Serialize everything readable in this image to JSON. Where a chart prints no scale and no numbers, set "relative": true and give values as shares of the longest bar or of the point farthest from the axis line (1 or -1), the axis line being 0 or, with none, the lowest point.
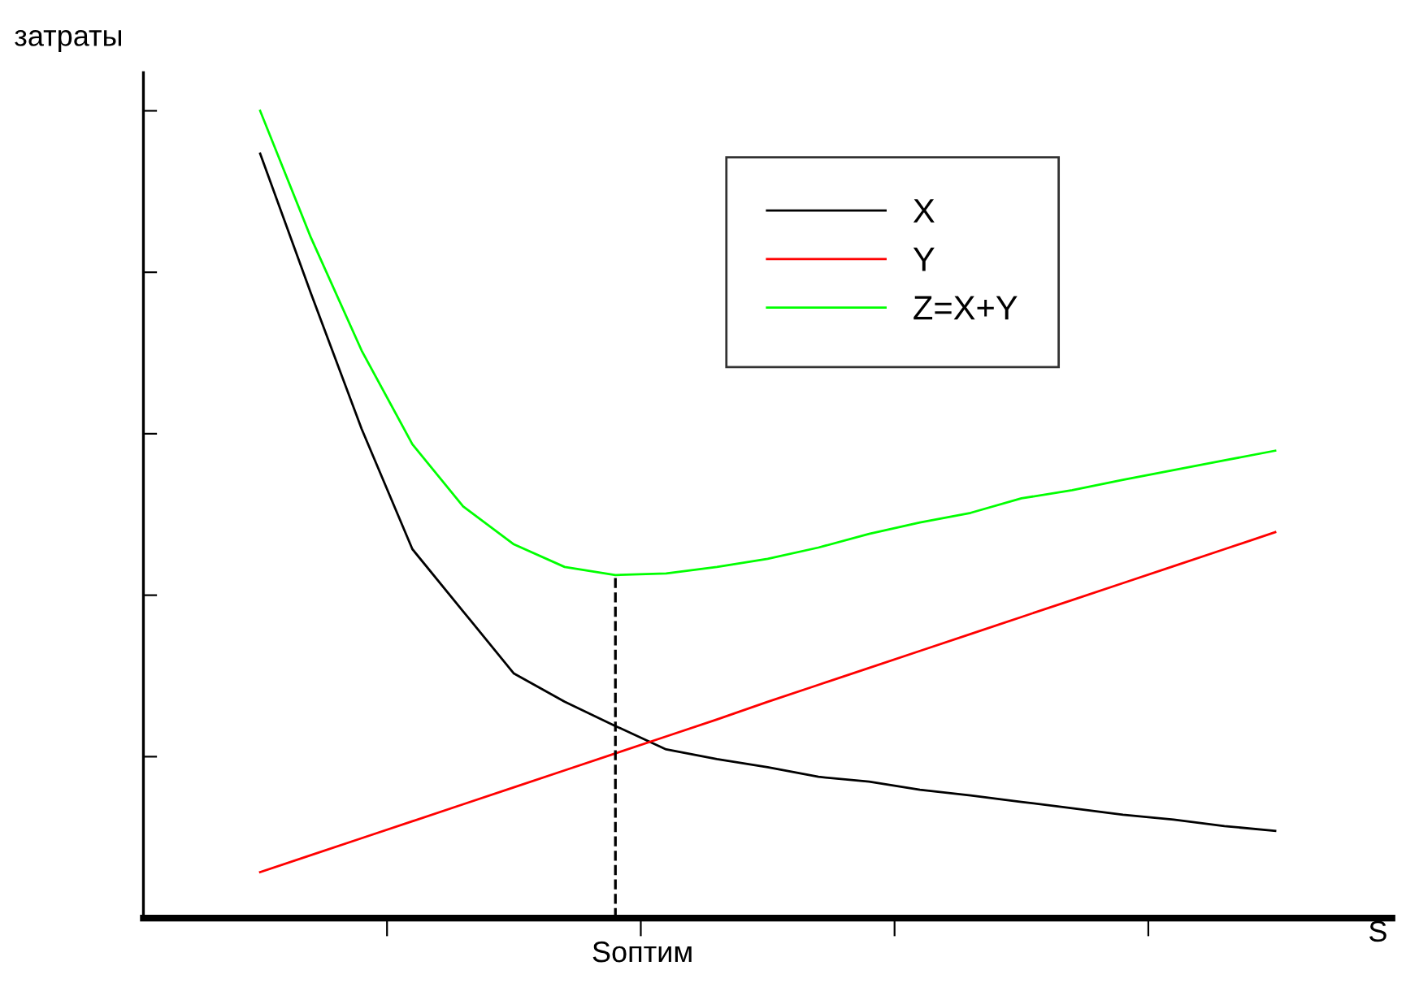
{
  "chart_data": {
    "type": "line",
    "relative": true,
    "xlabel": "S",
    "ylabel": "затраты",
    "annotations": [
      "Sоптим"
    ],
    "tick_labels": false,
    "legend": "top",
    "grid": false,
    "marker": "none",
    "line_style": "solid",
    "categories": [
      null,
      null,
      null,
      null,
      null,
      null,
      null,
      null,
      null,
      null,
      null,
      null,
      null,
      null,
      null,
      null,
      null,
      null,
      null,
      null,
      null
    ],
    "series": [
      {
        "name": "X",
        "color": "#000000",
        "values": [
          0.947,
          0.774,
          0.606,
          0.457,
          0.38,
          0.303,
          0.268,
          0.238,
          0.209,
          0.197,
          0.187,
          0.175,
          0.169,
          0.159,
          0.152,
          0.144,
          0.136,
          0.128,
          0.122,
          0.114,
          0.108
        ]
      },
      {
        "name": "Y",
        "color": "#ff0000",
        "values": [
          0.057,
          0.078,
          0.099,
          0.12,
          0.141,
          0.162,
          0.183,
          0.204,
          0.225,
          0.246,
          0.268,
          0.289,
          0.31,
          0.331,
          0.352,
          0.373,
          0.394,
          0.415,
          0.436,
          0.457,
          0.478
        ]
      },
      {
        "name": "Z=X+Y",
        "color": "#00ff00",
        "values": [
          1.0,
          0.843,
          0.703,
          0.587,
          0.51,
          0.463,
          0.435,
          0.425,
          0.427,
          0.435,
          0.445,
          0.459,
          0.476,
          0.49,
          0.502,
          0.52,
          0.53,
          0.543,
          0.555,
          0.567,
          0.579
        ]
      }
    ]
  }
}
